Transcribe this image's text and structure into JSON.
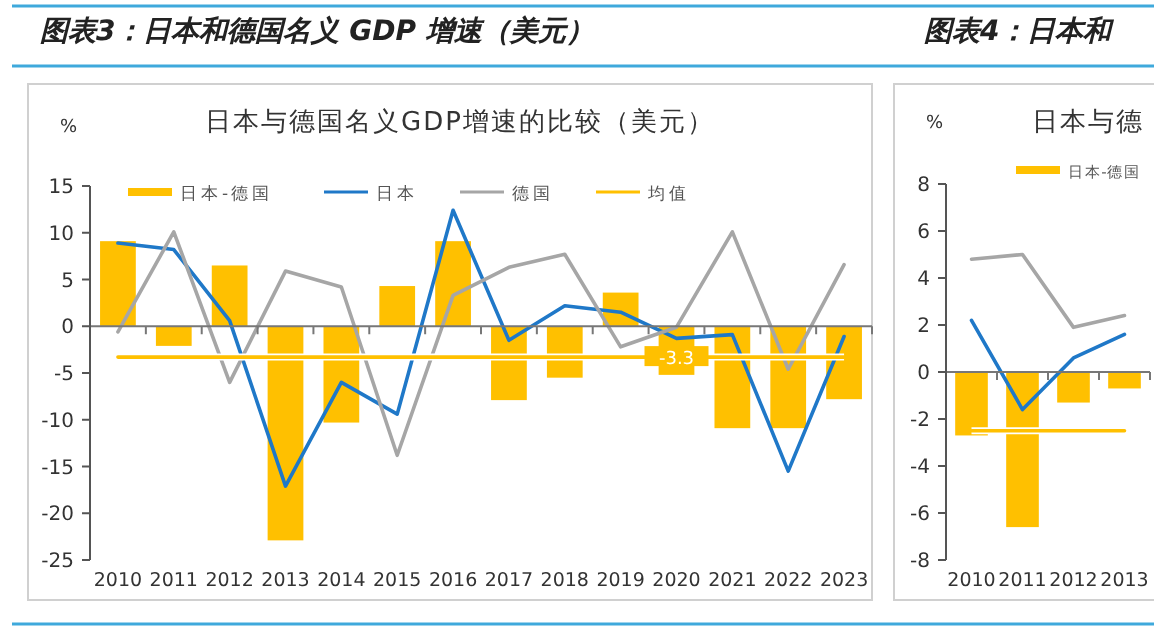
{
  "chart_data": [
    {
      "type": "bar",
      "title": "日本与德国名义GDP增速的比较（美元）",
      "ylabel": "%",
      "annotations": [
        "图表3：日本和德国名义 GDP 增速（美元）"
      ],
      "categories": [
        "2010",
        "2011",
        "2012",
        "2013",
        "2014",
        "2015",
        "2016",
        "2017",
        "2018",
        "2019",
        "2020",
        "2021",
        "2022",
        "2023"
      ],
      "series": [
        {
          "name": "日本-德国",
          "color": "#ffc000",
          "values": [
            9.1,
            -2.1,
            6.5,
            -22.9,
            -10.3,
            4.3,
            9.1,
            -7.9,
            -5.5,
            3.6,
            -5.2,
            -10.9,
            -10.9,
            -7.8
          ]
        },
        {
          "name": "日本",
          "type": "line",
          "color": "#1f78c8",
          "values": [
            8.9,
            8.2,
            0.6,
            -17.1,
            -6.0,
            -9.4,
            12.4,
            -1.5,
            2.2,
            1.5,
            -1.3,
            -0.9,
            -15.5,
            -1.1
          ]
        },
        {
          "name": "德国",
          "type": "line",
          "color": "#a6a6a6",
          "values": [
            -0.6,
            10.1,
            -6.0,
            5.9,
            4.2,
            -13.8,
            3.3,
            6.3,
            7.7,
            -2.2,
            -0.1,
            10.1,
            -4.6,
            6.6
          ]
        },
        {
          "name": "均值",
          "type": "line",
          "color": "#ffc000",
          "values": [
            -3.3,
            -3.3,
            -3.3,
            -3.3,
            -3.3,
            -3.3,
            -3.3,
            -3.3,
            -3.3,
            -3.3,
            -3.3,
            -3.3,
            -3.3,
            -3.3
          ],
          "value_labels": [
            null,
            null,
            null,
            null,
            null,
            null,
            null,
            null,
            null,
            null,
            "-3.3",
            null,
            null,
            null
          ]
        }
      ],
      "ylim": [
        -25,
        15
      ],
      "yticks": [
        -25,
        -20,
        -15,
        -10,
        -5,
        0,
        5,
        10,
        15
      ],
      "legend": "top"
    },
    {
      "type": "bar",
      "title": "日本与德",
      "ylabel": "%",
      "annotations": [
        "图表4：日本和"
      ],
      "categories": [
        "2010",
        "2011",
        "2012",
        "2013"
      ],
      "series": [
        {
          "name": "日本-德国",
          "color": "#ffc000",
          "values": [
            -2.7,
            -6.6,
            -1.3,
            -0.7
          ]
        },
        {
          "type": "line",
          "color": "#1f78c8",
          "values": [
            2.2,
            -1.6,
            0.6,
            1.6
          ]
        },
        {
          "type": "line",
          "color": "#a6a6a6",
          "values": [
            4.8,
            5.0,
            1.9,
            2.4
          ]
        },
        {
          "type": "line",
          "color": "#ffc000",
          "values": [
            -2.5,
            -2.5,
            -2.5,
            -2.5
          ]
        }
      ],
      "ylim": [
        -8,
        8
      ],
      "yticks": [
        -8,
        -6,
        -4,
        -2,
        0,
        2,
        4,
        6,
        8
      ],
      "legend": "top"
    }
  ]
}
